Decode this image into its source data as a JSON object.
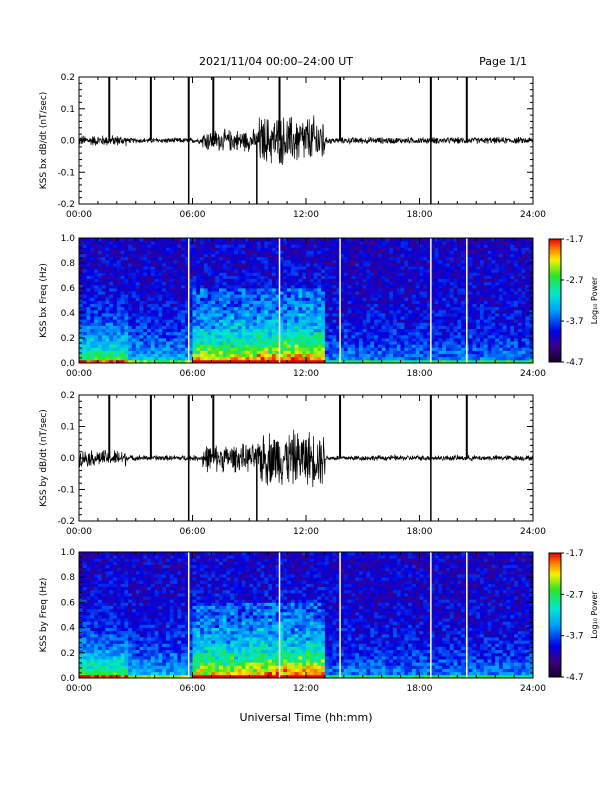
{
  "header": {
    "title": "2021/11/04  00:00–24:00 UT",
    "page": "Page 1/1"
  },
  "xlabel": "Universal Time (hh:mm)",
  "chart_data": [
    {
      "type": "line",
      "ylabel": "KSS bx dB/dt (nT/sec)",
      "xlim": [
        0,
        24
      ],
      "ylim": [
        -0.2,
        0.2
      ],
      "yticks": [
        "-0.2",
        "-0.1",
        "0.0",
        "0.1",
        "0.2"
      ],
      "xticks": [
        "00:00",
        "06:00",
        "12:00",
        "18:00",
        "24:00"
      ],
      "spikes_up": [
        1.6,
        3.8,
        5.8,
        7.1,
        10.6,
        13.8,
        18.6,
        20.5
      ],
      "spikes_down": [
        5.8,
        9.4,
        18.6
      ],
      "activity": [
        {
          "hours": [
            0,
            2.5
          ],
          "amplitude": 0.02
        },
        {
          "hours": [
            6.5,
            9.5
          ],
          "amplitude": 0.04
        },
        {
          "hours": [
            9.5,
            13
          ],
          "amplitude": 0.09
        },
        {
          "hours": [
            13,
            24
          ],
          "amplitude": 0.012
        }
      ]
    },
    {
      "type": "heatmap",
      "ylabel": "KSS bx Freq (Hz)",
      "xlim": [
        0,
        24
      ],
      "ylim": [
        0.0,
        1.0
      ],
      "yticks": [
        "0.0",
        "0.2",
        "0.4",
        "0.6",
        "0.8",
        "1.0"
      ],
      "xticks": [
        "00:00",
        "06:00",
        "12:00",
        "18:00",
        "24:00"
      ],
      "colorbar": {
        "label": "Log₁₀ Power",
        "ticks": [
          "-1.7",
          "-2.7",
          "-3.7",
          "-4.7"
        ],
        "range": [
          -4.7,
          -1.7
        ]
      },
      "gaps": [
        5.8,
        10.6,
        13.8,
        18.6,
        20.5
      ]
    },
    {
      "type": "line",
      "ylabel": "KSS by dB/dt (nT/sec)",
      "xlim": [
        0,
        24
      ],
      "ylim": [
        -0.2,
        0.2
      ],
      "yticks": [
        "-0.2",
        "-0.1",
        "0.0",
        "0.1",
        "0.2"
      ],
      "xticks": [
        "00:00",
        "06:00",
        "12:00",
        "18:00",
        "24:00"
      ],
      "spikes_up": [
        1.6,
        3.8,
        5.8,
        7.1,
        13.8,
        18.6,
        20.5
      ],
      "spikes_down": [
        5.8,
        9.4,
        18.6
      ],
      "activity": [
        {
          "hours": [
            0,
            2.5
          ],
          "amplitude": 0.03
        },
        {
          "hours": [
            6.5,
            9.5
          ],
          "amplitude": 0.05
        },
        {
          "hours": [
            9.5,
            13
          ],
          "amplitude": 0.1
        },
        {
          "hours": [
            13,
            24
          ],
          "amplitude": 0.01
        }
      ]
    },
    {
      "type": "heatmap",
      "ylabel": "KSS by Freq (Hz)",
      "xlim": [
        0,
        24
      ],
      "ylim": [
        0.0,
        1.0
      ],
      "yticks": [
        "0.0",
        "0.2",
        "0.4",
        "0.6",
        "0.8",
        "1.0"
      ],
      "xticks": [
        "00:00",
        "06:00",
        "12:00",
        "18:00",
        "24:00"
      ],
      "colorbar": {
        "label": "Log₁₀ Power",
        "ticks": [
          "-1.7",
          "-2.7",
          "-3.7",
          "-4.7"
        ],
        "range": [
          -4.7,
          -1.7
        ]
      },
      "gaps": [
        5.8,
        10.6,
        13.8,
        18.6,
        20.5
      ]
    }
  ]
}
